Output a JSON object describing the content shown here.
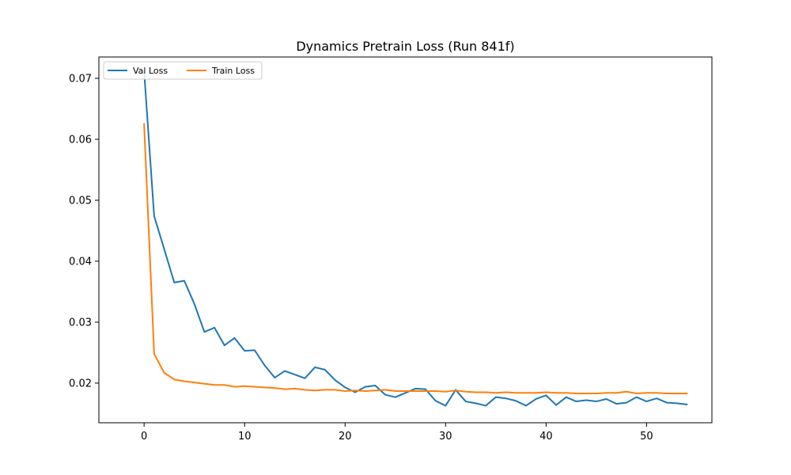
{
  "chart_data": {
    "type": "line",
    "title": "Dynamics Pretrain Loss (Run 841f)",
    "xlabel": "",
    "ylabel": "",
    "xlim": [
      -4.5,
      56.5
    ],
    "ylim": [
      0.0135,
      0.0735
    ],
    "xticks": [
      0,
      10,
      20,
      30,
      40,
      50
    ],
    "yticks": [
      0.02,
      0.03,
      0.04,
      0.05,
      0.06,
      0.07
    ],
    "ytick_labels": [
      "0.02",
      "0.03",
      "0.04",
      "0.05",
      "0.06",
      "0.07"
    ],
    "grid": false,
    "legend": {
      "placement": "upper-left",
      "ncol": 2
    },
    "series": [
      {
        "name": "Val Loss",
        "color": "#1f77b4",
        "x": [
          0,
          1,
          2,
          3,
          4,
          5,
          6,
          7,
          8,
          9,
          10,
          11,
          12,
          13,
          14,
          15,
          16,
          17,
          18,
          19,
          20,
          21,
          22,
          23,
          24,
          25,
          26,
          27,
          28,
          29,
          30,
          31,
          32,
          33,
          34,
          35,
          36,
          37,
          38,
          39,
          40,
          41,
          42,
          43,
          44,
          45,
          46,
          47,
          48,
          49,
          50,
          51,
          52,
          53,
          54
        ],
        "values": [
          0.0712,
          0.0474,
          0.042,
          0.0365,
          0.0368,
          0.033,
          0.0284,
          0.0291,
          0.0262,
          0.0274,
          0.0253,
          0.0254,
          0.0229,
          0.0209,
          0.022,
          0.0214,
          0.0208,
          0.0226,
          0.0222,
          0.0205,
          0.0193,
          0.0185,
          0.0194,
          0.0196,
          0.0181,
          0.0177,
          0.0184,
          0.0191,
          0.019,
          0.0171,
          0.0163,
          0.0189,
          0.017,
          0.0167,
          0.0163,
          0.0177,
          0.0175,
          0.0171,
          0.0163,
          0.0174,
          0.018,
          0.0164,
          0.0177,
          0.017,
          0.0172,
          0.017,
          0.0174,
          0.0166,
          0.0168,
          0.0177,
          0.017,
          0.0175,
          0.0168,
          0.0167,
          0.0165
        ]
      },
      {
        "name": "Train Loss",
        "color": "#ff7f0e",
        "x": [
          0,
          1,
          2,
          3,
          4,
          5,
          6,
          7,
          8,
          9,
          10,
          11,
          12,
          13,
          14,
          15,
          16,
          17,
          18,
          19,
          20,
          21,
          22,
          23,
          24,
          25,
          26,
          27,
          28,
          29,
          30,
          31,
          32,
          33,
          34,
          35,
          36,
          37,
          38,
          39,
          40,
          41,
          42,
          43,
          44,
          45,
          46,
          47,
          48,
          49,
          50,
          51,
          52,
          53,
          54
        ],
        "values": [
          0.0625,
          0.0248,
          0.0217,
          0.0206,
          0.0203,
          0.0201,
          0.0199,
          0.0197,
          0.0197,
          0.0194,
          0.0195,
          0.0194,
          0.0193,
          0.0192,
          0.019,
          0.0191,
          0.0189,
          0.0188,
          0.0189,
          0.0189,
          0.0187,
          0.0188,
          0.0187,
          0.0188,
          0.0189,
          0.0187,
          0.0187,
          0.0187,
          0.0187,
          0.0187,
          0.0186,
          0.0188,
          0.0186,
          0.0185,
          0.0185,
          0.0184,
          0.0185,
          0.0184,
          0.0184,
          0.0184,
          0.0185,
          0.0184,
          0.0184,
          0.0183,
          0.0183,
          0.0183,
          0.0184,
          0.0184,
          0.0186,
          0.0183,
          0.0184,
          0.0184,
          0.0183,
          0.0183,
          0.0183
        ]
      }
    ]
  }
}
